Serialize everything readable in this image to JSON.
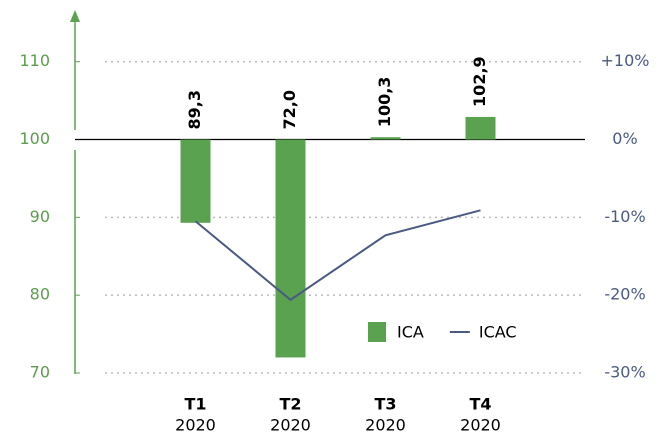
{
  "chart_data": {
    "type": "bar",
    "categories": [
      [
        "T1",
        "2020"
      ],
      [
        "T2",
        "2020"
      ],
      [
        "T3",
        "2020"
      ],
      [
        "T4",
        "2020"
      ]
    ],
    "ylim": [
      70,
      116
    ],
    "yticks": [
      70,
      80,
      90,
      100,
      110
    ],
    "y2lim": [
      -30,
      16
    ],
    "y2ticks": [
      {
        "value": -30,
        "label": "-30%"
      },
      {
        "value": -20,
        "label": "-20%"
      },
      {
        "value": -10,
        "label": "-10%"
      },
      {
        "value": 0,
        "label": "0%"
      },
      {
        "value": 10,
        "label": "+10%"
      }
    ],
    "baseline": 100,
    "grid": true,
    "series": [
      {
        "name": "ICA",
        "type": "bar",
        "color": "#5aa150",
        "values": [
          89.3,
          72.0,
          100.3,
          102.9
        ],
        "value_labels": [
          "89,3",
          "72,0",
          "100,3",
          "102,9"
        ]
      },
      {
        "name": "ICAC",
        "type": "line",
        "axis": "y2",
        "color": "#4a5a82",
        "values": [
          -10.5,
          -20.6,
          -12.3,
          -9.1
        ]
      }
    ]
  }
}
